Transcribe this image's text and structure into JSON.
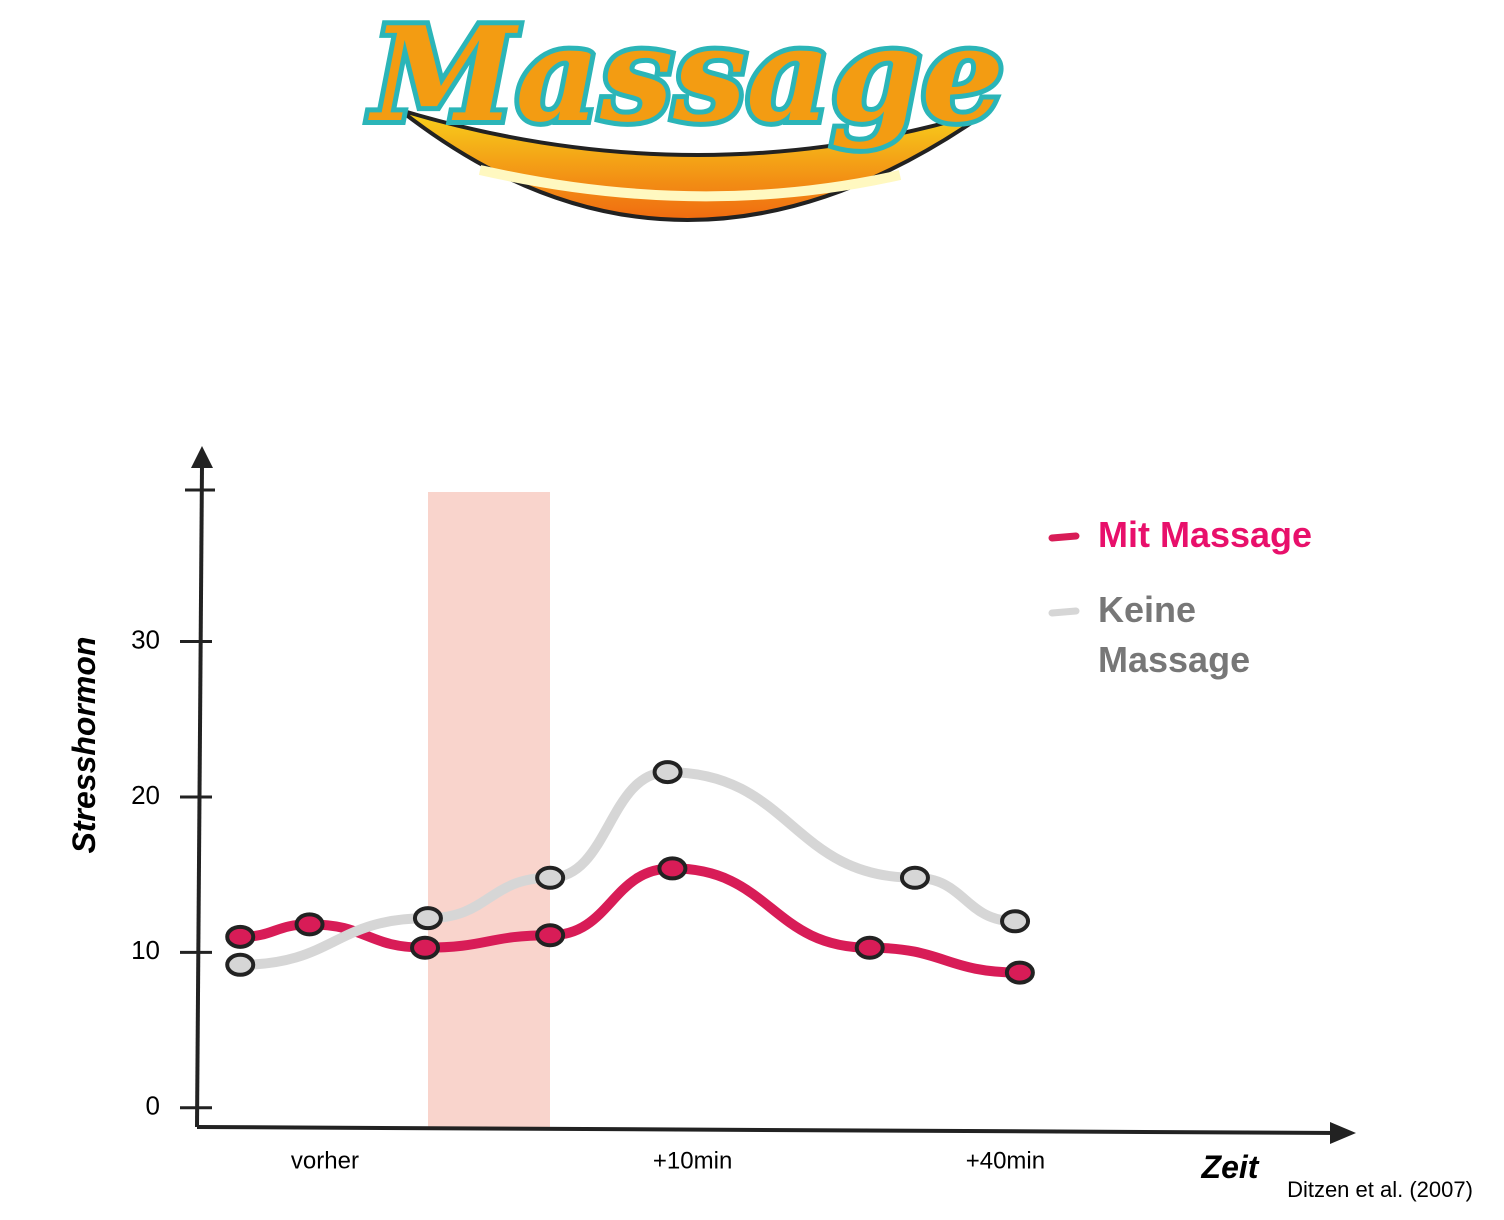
{
  "chart_data": {
    "type": "line",
    "title": "Massage",
    "xlabel": "Zeit",
    "ylabel": "Stresshormon",
    "source": "Ditzen et al. (2007)",
    "xlim": [
      0,
      12
    ],
    "ylim": [
      -1.3,
      42
    ],
    "xticks": [
      {
        "value": 1.35,
        "label": "vorher"
      },
      {
        "value": 5.17,
        "label": "+10min"
      },
      {
        "value": 8.42,
        "label": "+40min"
      }
    ],
    "yticks": [
      0,
      10,
      20,
      30
    ],
    "legend": "top-right",
    "series": [
      {
        "name": "Mit Massage",
        "color": "#d81c57",
        "text_color": "#e8106b",
        "x": [
          0.47,
          1.19,
          2.39,
          3.69,
          4.96,
          7.01,
          8.57
        ],
        "values": [
          11.0,
          11.8,
          10.3,
          11.1,
          15.4,
          10.3,
          8.7
        ]
      },
      {
        "name": "Keine Massage",
        "color": "#d6d6d6",
        "text_color": "#777777",
        "x": [
          0.47,
          2.42,
          3.69,
          4.91,
          7.48,
          8.52
        ],
        "values": [
          9.2,
          12.2,
          14.8,
          21.6,
          14.8,
          12.0
        ]
      }
    ]
  }
}
